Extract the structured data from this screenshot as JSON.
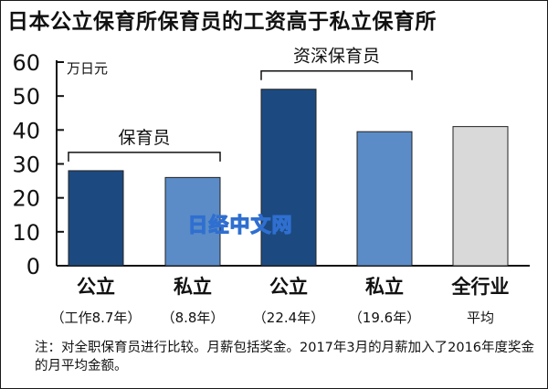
{
  "chart_data": {
    "type": "bar",
    "title": "日本公立保育所保育员的工资高于私立保育所",
    "ylabel": "万日元",
    "ylim": [
      0,
      60
    ],
    "yticks": [
      0,
      10,
      20,
      30,
      40,
      50,
      60
    ],
    "grid": false,
    "categories": [
      {
        "label": "公立",
        "sublabel": "（工作8.7年）",
        "value": 28,
        "color": "#1c4a80"
      },
      {
        "label": "私立",
        "sublabel": "（8.8年）",
        "value": 26,
        "color": "#5b8cc7"
      },
      {
        "label": "公立",
        "sublabel": "（22.4年）",
        "value": 52,
        "color": "#1c4a80"
      },
      {
        "label": "私立",
        "sublabel": "（19.6年）",
        "value": 39.5,
        "color": "#5b8cc7"
      },
      {
        "label": "全行业",
        "sublabel": "平均",
        "value": 41,
        "color": "#d9d9d9"
      }
    ],
    "groups": [
      {
        "label": "保育员",
        "from": 0,
        "to": 1
      },
      {
        "label": "资深保育员",
        "from": 2,
        "to": 3
      }
    ],
    "watermark": "日经中文网"
  },
  "note": {
    "prefix": "注：",
    "text": "对全职保育员进行比较。月薪包括奖金。2017年3月的月薪加入了2016年度奖金的月平均金额。"
  }
}
